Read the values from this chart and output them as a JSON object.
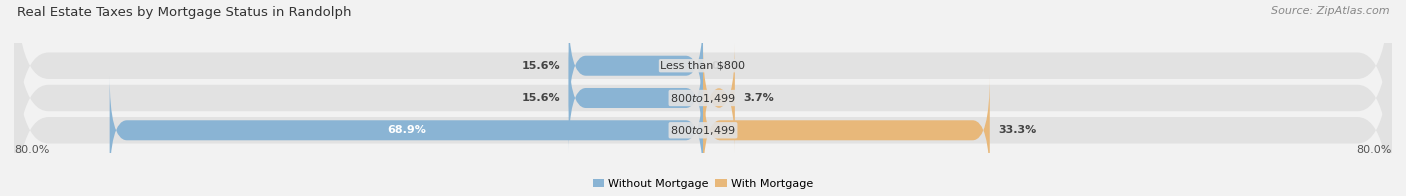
{
  "title": "Real Estate Taxes by Mortgage Status in Randolph",
  "source": "Source: ZipAtlas.com",
  "bars": [
    {
      "label": "Less than $800",
      "without_mortgage": 15.6,
      "with_mortgage": 0.0
    },
    {
      "label": "$800 to $1,499",
      "without_mortgage": 15.6,
      "with_mortgage": 3.7
    },
    {
      "label": "$800 to $1,499",
      "without_mortgage": 68.9,
      "with_mortgage": 33.3
    }
  ],
  "x_left_label": "80.0%",
  "x_right_label": "80.0%",
  "xlim_left": -80.0,
  "xlim_right": 80.0,
  "color_without": "#8ab4d4",
  "color_with": "#e8b87a",
  "bg_color": "#f2f2f2",
  "bar_bg_color": "#e2e2e2",
  "title_fontsize": 9.5,
  "source_fontsize": 8,
  "tick_fontsize": 8,
  "label_fontsize": 8,
  "bar_height": 0.62,
  "legend_label_without": "Without Mortgage",
  "legend_label_with": "With Mortgage"
}
